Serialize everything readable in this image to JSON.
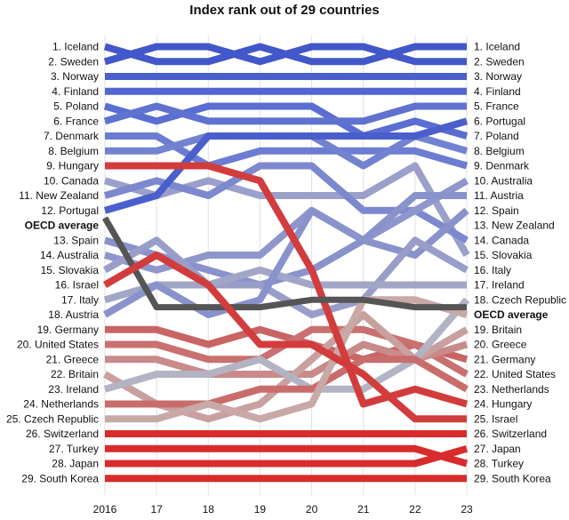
{
  "chart_data": {
    "type": "line",
    "title": "Index rank out of 29 countries",
    "x": [
      "2016",
      "17",
      "18",
      "19",
      "20",
      "21",
      "22",
      "23"
    ],
    "left_labels": [
      "1. Iceland",
      "2. Sweden",
      "3. Norway",
      "4. Finland",
      "5. Poland",
      "6. France",
      "7. Denmark",
      "8. Belgium",
      "9. Hungary",
      "10. Canada",
      "11. New Zealand",
      "12. Portugal",
      "OECD average",
      "13. Spain",
      "14. Australia",
      "15. Slovakia",
      "16. Israel",
      "17. Italy",
      "18. Austria",
      "19. Germany",
      "20. United States",
      "21. Greece",
      "22. Britain",
      "23. Ireland",
      "24. Netherlands",
      "25. Czech Republic",
      "26. Switzerland",
      "27. Turkey",
      "28. Japan",
      "29. South Korea"
    ],
    "right_labels": [
      "1. Iceland",
      "2. Sweden",
      "3. Norway",
      "4. Finland",
      "5. France",
      "6. Portugal",
      "7. Poland",
      "8. Belgium",
      "9. Denmark",
      "10. Australia",
      "11. Austria",
      "12. Spain",
      "13. New Zealand",
      "14. Canada",
      "15. Slovakia",
      "16. Italy",
      "17. Ireland",
      "18. Czech Republic",
      "OECD average",
      "19. Britain",
      "20. Greece",
      "21. Germany",
      "22. United States",
      "23. Netherlands",
      "24. Hungary",
      "25. Israel",
      "26. Switzerland",
      "27. Japan",
      "28. Turkey",
      "29. South Korea"
    ],
    "y_range": [
      1,
      30
    ],
    "series": [
      {
        "name": "Iceland",
        "color": "#4257c9",
        "values": [
          1,
          2,
          2,
          1,
          2,
          2,
          1,
          1
        ]
      },
      {
        "name": "Sweden",
        "color": "#4257c9",
        "values": [
          2,
          1,
          1,
          2,
          1,
          1,
          2,
          2
        ]
      },
      {
        "name": "Norway",
        "color": "#4a5fcc",
        "values": [
          3,
          3,
          3,
          3,
          3,
          3,
          3,
          3
        ]
      },
      {
        "name": "Finland",
        "color": "#5266cf",
        "values": [
          4,
          4,
          4,
          4,
          4,
          4,
          4,
          4
        ]
      },
      {
        "name": "Poland",
        "color": "#5a6dd2",
        "values": [
          5,
          6,
          5,
          5,
          5,
          7,
          6,
          7
        ]
      },
      {
        "name": "France",
        "color": "#6072cf",
        "values": [
          6,
          5,
          6,
          6,
          6,
          6,
          5,
          5
        ]
      },
      {
        "name": "Denmark",
        "color": "#6c7cd2",
        "values": [
          7,
          7,
          9,
          8,
          8,
          8,
          8,
          9
        ]
      },
      {
        "name": "Belgium",
        "color": "#7382d0",
        "values": [
          8,
          8,
          7,
          7,
          7,
          9,
          7,
          8
        ]
      },
      {
        "name": "Hungary",
        "color": "#d23c3c",
        "values": [
          9,
          9,
          9,
          10,
          15,
          24,
          23,
          24
        ]
      },
      {
        "name": "Canada",
        "color": "#9aa0c9",
        "values": [
          10,
          11,
          10,
          11,
          11,
          11,
          9,
          14
        ]
      },
      {
        "name": "New Zealand",
        "color": "#7d88cf",
        "values": [
          11,
          10,
          11,
          9,
          9,
          12,
          12,
          13
        ]
      },
      {
        "name": "Portugal",
        "color": "#4a5fcc",
        "values": [
          12,
          11,
          7,
          7,
          7,
          7,
          7,
          6
        ]
      },
      {
        "name": "OECD average",
        "color": "#555555",
        "values": [
          12.5,
          18.5,
          18.5,
          18.5,
          18,
          18,
          18.5,
          18.5
        ]
      },
      {
        "name": "Spain",
        "color": "#8a92cc",
        "values": [
          13,
          14,
          15,
          16,
          15,
          13,
          14,
          12
        ]
      },
      {
        "name": "Australia",
        "color": "#8f96cb",
        "values": [
          14,
          15,
          14,
          14,
          12,
          13,
          12,
          10
        ]
      },
      {
        "name": "Slovakia",
        "color": "#999ec9",
        "values": [
          15,
          13,
          16,
          16,
          18,
          17,
          13,
          15
        ]
      },
      {
        "name": "Israel",
        "color": "#d23c3c",
        "values": [
          16,
          14,
          16,
          20,
          20,
          22,
          25,
          25
        ]
      },
      {
        "name": "Italy",
        "color": "#a2a6c6",
        "values": [
          17,
          16,
          16,
          15,
          16,
          16,
          16,
          16
        ]
      },
      {
        "name": "Austria",
        "color": "#8a92cc",
        "values": [
          18,
          16,
          18,
          17,
          12,
          13,
          11,
          11
        ]
      },
      {
        "name": "Germany",
        "color": "#c96464",
        "values": [
          19,
          19,
          20,
          19,
          20,
          21,
          20,
          21
        ]
      },
      {
        "name": "United States",
        "color": "#c97070",
        "values": [
          20,
          20,
          21,
          21,
          19,
          19,
          20,
          22
        ]
      },
      {
        "name": "Greece",
        "color": "#c98a8a",
        "values": [
          21,
          21,
          22,
          22,
          22,
          20,
          21,
          20
        ]
      },
      {
        "name": "Britain",
        "color": "#c9a0a0",
        "values": [
          22,
          24,
          25,
          24,
          21,
          18,
          21,
          19
        ]
      },
      {
        "name": "Ireland",
        "color": "#b2b4c4",
        "values": [
          23,
          22,
          22,
          21,
          23,
          23,
          21,
          17
        ]
      },
      {
        "name": "Netherlands",
        "color": "#c96c6c",
        "values": [
          24,
          24,
          24,
          23,
          23,
          21,
          21,
          23
        ]
      },
      {
        "name": "Czech Republic",
        "color": "#c9a8a8",
        "values": [
          25,
          25,
          24,
          25,
          24,
          17,
          17,
          18
        ]
      },
      {
        "name": "Switzerland",
        "color": "#d82c2c",
        "values": [
          26,
          26,
          26,
          26,
          26,
          26,
          26,
          26
        ]
      },
      {
        "name": "Turkey",
        "color": "#d82c2c",
        "values": [
          27,
          27,
          27,
          27,
          27,
          27,
          27,
          28
        ]
      },
      {
        "name": "Japan",
        "color": "#d82c2c",
        "values": [
          28,
          28,
          28,
          28,
          28,
          28,
          28,
          27
        ]
      },
      {
        "name": "South Korea",
        "color": "#d82c2c",
        "values": [
          29,
          29,
          29,
          29,
          29,
          29,
          29,
          29
        ]
      }
    ]
  }
}
